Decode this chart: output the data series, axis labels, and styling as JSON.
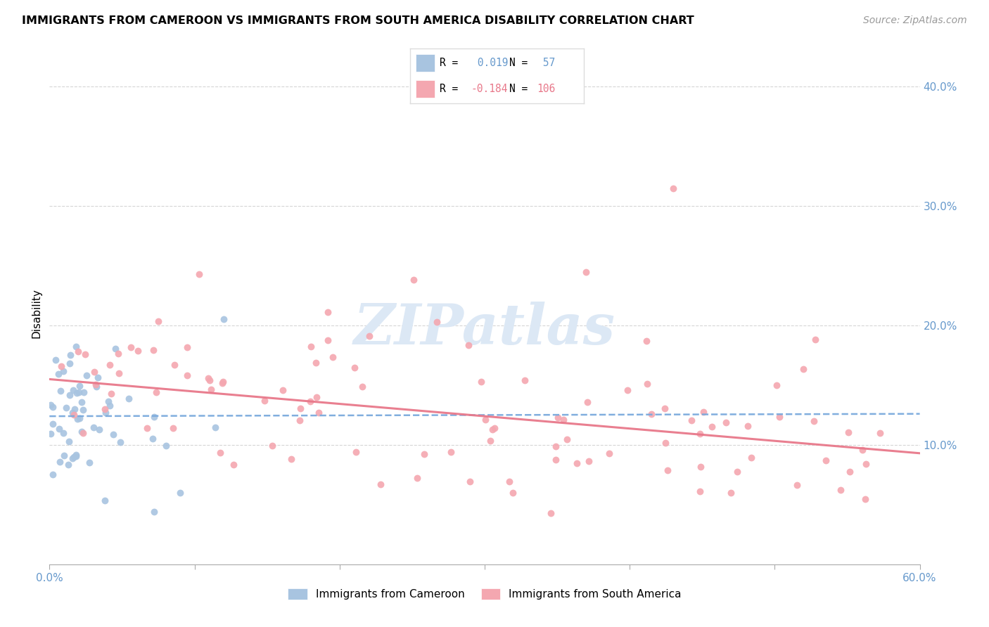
{
  "title": "IMMIGRANTS FROM CAMEROON VS IMMIGRANTS FROM SOUTH AMERICA DISABILITY CORRELATION CHART",
  "source": "Source: ZipAtlas.com",
  "ylabel": "Disability",
  "xlim": [
    0.0,
    0.6
  ],
  "ylim": [
    0.0,
    0.42
  ],
  "xtick_pos": [
    0.0,
    0.1,
    0.2,
    0.3,
    0.4,
    0.5,
    0.6
  ],
  "xtick_labels": [
    "0.0%",
    "",
    "",
    "",
    "",
    "",
    "60.0%"
  ],
  "ytick_pos": [
    0.0,
    0.1,
    0.2,
    0.3,
    0.4
  ],
  "ytick_labels": [
    "",
    "10.0%",
    "20.0%",
    "30.0%",
    "40.0%"
  ],
  "blue_color": "#a8c4e0",
  "pink_color": "#f4a7b0",
  "blue_line_color": "#7aaadd",
  "pink_line_color": "#e8788a",
  "axis_color": "#6699cc",
  "grid_color": "#cccccc",
  "watermark_color": "#dce8f5",
  "watermark_text": "ZIPatlas",
  "legend_R1": " 0.019",
  "legend_N1": " 57",
  "legend_R2": "-0.184",
  "legend_N2": "106",
  "cam_trend_start_y": 0.124,
  "cam_trend_end_y": 0.126,
  "sa_trend_start_y": 0.155,
  "sa_trend_end_y": 0.093
}
